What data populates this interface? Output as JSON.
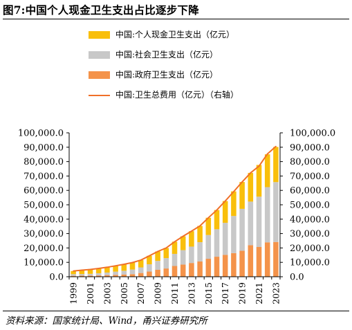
{
  "figure": {
    "title": "图7:中国个人现金卫生支出占比逐步下降",
    "source": "资料来源：国家统计局、Wind，甬兴证券研究所"
  },
  "chart_data": {
    "type": "bar",
    "stacked": true,
    "title": "",
    "xlabel": "",
    "ylabel": "",
    "x": [
      1999,
      2000,
      2001,
      2002,
      2003,
      2004,
      2005,
      2006,
      2007,
      2008,
      2009,
      2010,
      2011,
      2012,
      2013,
      2014,
      2015,
      2016,
      2017,
      2018,
      2019,
      2020,
      2021,
      2022,
      2023
    ],
    "x_tick_labels": [
      "1999",
      "2001",
      "2003",
      "2005",
      "2007",
      "2009",
      "2011",
      "2013",
      "2015",
      "2017",
      "2019",
      "2021",
      "2023"
    ],
    "series": [
      {
        "name": "中国:政府卫生支出（亿元）",
        "color": "#f4934a",
        "values": [
          640,
          710,
          800,
          910,
          1120,
          1290,
          1550,
          1780,
          2580,
          3590,
          4820,
          5730,
          7460,
          8430,
          9550,
          10580,
          12480,
          13910,
          15210,
          16400,
          18020,
          21940,
          20680,
          23920,
          24150
        ]
      },
      {
        "name": "中国:社会卫生支出（亿元）",
        "color": "#c8c8c8",
        "values": [
          1150,
          1170,
          1210,
          1540,
          1790,
          2230,
          2590,
          3210,
          3890,
          5070,
          6150,
          7200,
          8420,
          10030,
          11390,
          13440,
          16510,
          19100,
          22260,
          25810,
          29150,
          30270,
          34960,
          38350,
          41610
        ]
      },
      {
        "name": "中国:个人现金卫生支出（亿元）",
        "color": "#f9bf0b",
        "values": [
          2180,
          2710,
          2860,
          3340,
          3680,
          4070,
          4520,
          4850,
          5100,
          5880,
          6570,
          7050,
          8470,
          9660,
          10730,
          11300,
          11990,
          13340,
          15130,
          17110,
          18670,
          19960,
          22050,
          22810,
          24430
        ]
      },
      {
        "name": "中国:卫生总费用（亿元）（右轴）",
        "color": "#f07028",
        "type": "line",
        "axis": "right",
        "values": [
          3970,
          4590,
          5030,
          5790,
          6580,
          7590,
          8660,
          9840,
          11570,
          14540,
          17540,
          19980,
          24350,
          28120,
          31670,
          35310,
          40970,
          46340,
          52600,
          59120,
          65840,
          72180,
          76850,
          85330,
          90580
        ]
      }
    ],
    "y_left": {
      "min": 0,
      "max": 100000,
      "ticks": [
        "0.0",
        "10,000.0",
        "20,000.0",
        "30,000.0",
        "40,000.0",
        "50,000.0",
        "60,000.0",
        "70,000.0",
        "80,000.0",
        "90,000.0",
        "100,000.0"
      ]
    },
    "y_right": {
      "min": 0,
      "max": 100000,
      "ticks": [
        "0.0",
        "10,000.0",
        "20,000.0",
        "30,000.0",
        "40,000.0",
        "50,000.0",
        "60,000.0",
        "70,000.0",
        "80,000.0",
        "90,000.0",
        "100,000.0"
      ]
    },
    "grid": false,
    "legend_position": "top"
  },
  "legend": [
    {
      "label": "中国:个人现金卫生支出（亿元）",
      "color": "#f9bf0b",
      "kind": "bar"
    },
    {
      "label": "中国:社会卫生支出（亿元）",
      "color": "#c8c8c8",
      "kind": "bar"
    },
    {
      "label": "中国:政府卫生支出（亿元）",
      "color": "#f4934a",
      "kind": "bar"
    },
    {
      "label": "中国:卫生总费用（亿元）（右轴）",
      "color": "#f07028",
      "kind": "line"
    }
  ]
}
